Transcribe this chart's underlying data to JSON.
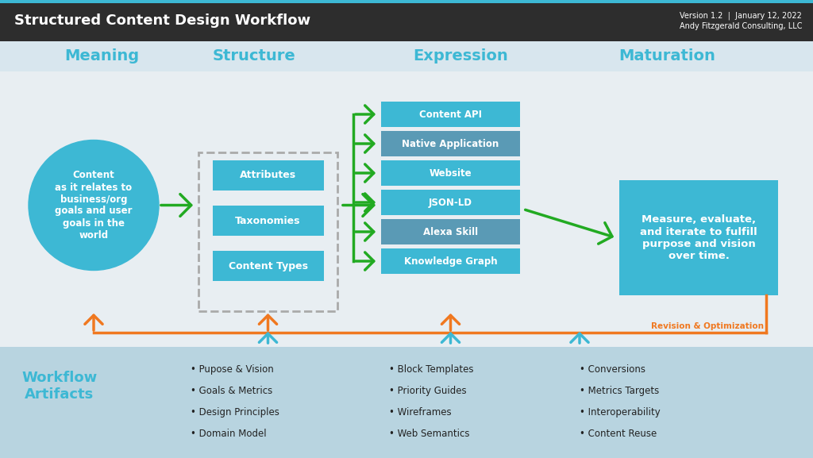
{
  "title": "Structured Content Design Workflow",
  "version_text": "Version 1.2  |  January 12, 2022\nAndy Fitzgerald Consulting, LLC",
  "header_bg": "#2d2d2d",
  "header_accent": "#3db8d4",
  "main_bg": "#e8eef2",
  "bottom_bg": "#b8d4e0",
  "phases": [
    "Meaning",
    "Structure",
    "Expression",
    "Maturation"
  ],
  "phase_color": "#3db8d4",
  "circle_text": "Content\nas it relates to\nbusiness/org\ngoals and user\ngoals in the\nworld",
  "circle_color": "#3db8d4",
  "struct_boxes": [
    "Attributes",
    "Taxonomies",
    "Content Types"
  ],
  "struct_box_color": "#3db8d4",
  "expr_boxes": [
    "Content API",
    "Native Application",
    "Website",
    "JSON-LD",
    "Alexa Skill",
    "Knowledge Graph"
  ],
  "expr_box_colors": [
    "#3db8d4",
    "#5a9ab5",
    "#3db8d4",
    "#3db8d4",
    "#5a9ab5",
    "#3db8d4"
  ],
  "maturation_text": "Measure, evaluate,\nand iterate to fulfill\npurpose and vision\nover time.",
  "maturation_color": "#3db8d4",
  "green_arrow": "#22aa22",
  "orange_arrow": "#f07820",
  "revision_label": "Revision & Optimization",
  "workflow_label": "Workflow\nArtifacts",
  "workflow_label_color": "#3db8d4",
  "col1_artifacts": [
    "Pupose & Vision",
    "Goals & Metrics",
    "Design Principles",
    "Domain Model"
  ],
  "col2_artifacts": [
    "Block Templates",
    "Priority Guides",
    "Wireframes",
    "Web Semantics"
  ],
  "col3_artifacts": [
    "Conversions",
    "Metrics Targets",
    "Interoperability",
    "Content Reuse"
  ]
}
